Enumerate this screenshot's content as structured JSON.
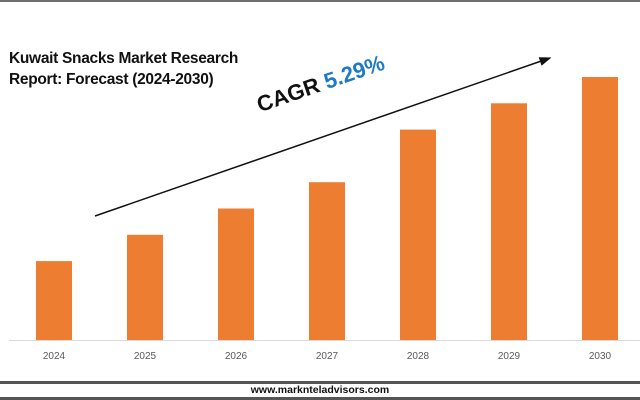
{
  "chart_data": {
    "type": "bar",
    "title": "Kuwait Snacks Market Research Report: Forecast (2024-2030)",
    "title_lines": [
      "Kuwait Snacks Market Research",
      "Report: Forecast (2024-2030)"
    ],
    "categories": [
      "2024",
      "2025",
      "2026",
      "2027",
      "2028",
      "2029",
      "2030"
    ],
    "values_relative": [
      30,
      40,
      50,
      60,
      80,
      90,
      100
    ],
    "bar_color": "#ed7d31",
    "annotation": {
      "label": "CAGR",
      "value": "5.29%",
      "value_color": "#1f7ac4",
      "arrow": "upward trend"
    },
    "xlabel": "",
    "ylabel": "",
    "grid": false,
    "legend": "none"
  },
  "footer": "www.marknteladvisors.com"
}
